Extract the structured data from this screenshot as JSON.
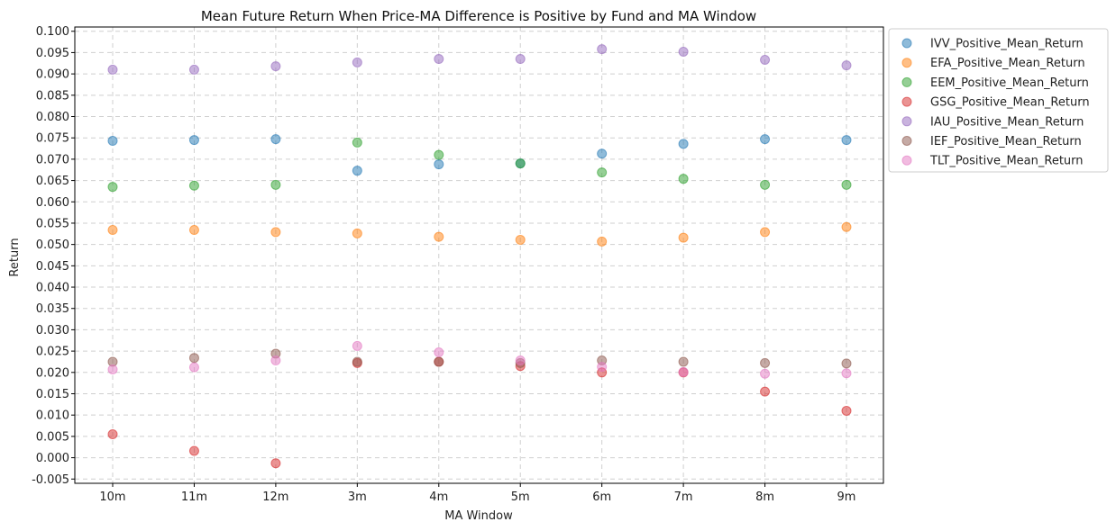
{
  "chart_data": {
    "type": "scatter",
    "title": "Mean Future Return When Price-MA Difference is Positive by Fund and MA Window",
    "xlabel": "MA Window",
    "ylabel": "Return",
    "categories": [
      "10m",
      "11m",
      "12m",
      "3m",
      "4m",
      "5m",
      "6m",
      "7m",
      "8m",
      "9m"
    ],
    "ylim": [
      -0.006,
      0.101
    ],
    "yticks": [
      -0.005,
      0.0,
      0.005,
      0.01,
      0.015,
      0.02,
      0.025,
      0.03,
      0.035,
      0.04,
      0.045,
      0.05,
      0.055,
      0.06,
      0.065,
      0.07,
      0.075,
      0.08,
      0.085,
      0.09,
      0.095,
      0.1
    ],
    "ytick_labels": [
      "-0.005",
      "0.000",
      "0.005",
      "0.010",
      "0.015",
      "0.020",
      "0.025",
      "0.030",
      "0.035",
      "0.040",
      "0.045",
      "0.050",
      "0.055",
      "0.060",
      "0.065",
      "0.070",
      "0.075",
      "0.080",
      "0.085",
      "0.090",
      "0.095",
      "0.100"
    ],
    "grid": true,
    "legend_position": "outside-top-right",
    "series": [
      {
        "name": "IVV_Positive_Mean_Return",
        "color": "#1f77b4",
        "values": [
          0.0743,
          0.0745,
          0.0747,
          0.0673,
          0.0688,
          0.069,
          0.0713,
          0.0736,
          0.0747,
          0.0745
        ]
      },
      {
        "name": "EFA_Positive_Mean_Return",
        "color": "#ff7f0e",
        "values": [
          0.0534,
          0.0534,
          0.0529,
          0.0526,
          0.0518,
          0.0511,
          0.0507,
          0.0516,
          0.0529,
          0.0541
        ]
      },
      {
        "name": "EEM_Positive_Mean_Return",
        "color": "#2ca02c",
        "values": [
          0.0635,
          0.0638,
          0.064,
          0.0739,
          0.071,
          0.069,
          0.0669,
          0.0654,
          0.064,
          0.064
        ]
      },
      {
        "name": "GSG_Positive_Mean_Return",
        "color": "#d62728",
        "values": [
          0.0055,
          0.0016,
          -0.0013,
          0.0222,
          0.0225,
          0.0215,
          0.02,
          0.02,
          0.0155,
          0.011
        ]
      },
      {
        "name": "IAU_Positive_Mean_Return",
        "color": "#9467bd",
        "values": [
          0.091,
          0.091,
          0.0918,
          0.0927,
          0.0935,
          0.0935,
          0.0958,
          0.0952,
          0.0933,
          0.092
        ]
      },
      {
        "name": "IEF_Positive_Mean_Return",
        "color": "#8c564b",
        "values": [
          0.0225,
          0.0234,
          0.0244,
          0.0225,
          0.0225,
          0.0222,
          0.0228,
          0.0225,
          0.0222,
          0.0221
        ]
      },
      {
        "name": "TLT_Positive_Mean_Return",
        "color": "#e377c2",
        "values": [
          0.0207,
          0.0212,
          0.0228,
          0.0262,
          0.0247,
          0.0228,
          0.0213,
          0.0201,
          0.0197,
          0.0198
        ]
      }
    ]
  }
}
